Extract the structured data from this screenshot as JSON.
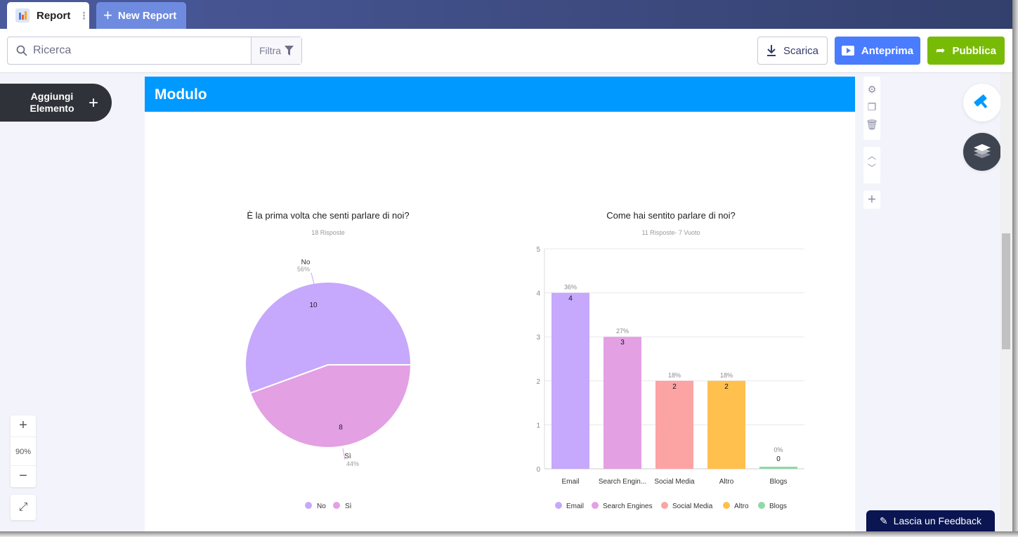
{
  "tabs": [
    {
      "label": "Report"
    },
    {
      "label": "New Report"
    }
  ],
  "toolbar": {
    "search_placeholder": "Ricerca",
    "filter": "Filtra",
    "download": "Scarica",
    "preview": "Anteprima",
    "publish": "Pubblica"
  },
  "sidebar": {
    "add_element": "Aggiungi Elemento",
    "zoom": "90%"
  },
  "page": {
    "title": "Modulo"
  },
  "feedback": "Lascia un Feedback",
  "colors": {
    "header": "#0099ff",
    "preview": "#4a7cff",
    "publish": "#78bb07"
  },
  "chart_data": [
    {
      "type": "pie",
      "title": "È la prima volta che senti parlare di noi?",
      "subtitle": "18 Risposte",
      "categories": [
        "No",
        "Sì"
      ],
      "values": [
        10,
        8
      ],
      "percent_labels": [
        "56%",
        "44%"
      ],
      "colors": [
        "#c6a8fc",
        "#e3a0e3"
      ],
      "legend": "bottom"
    },
    {
      "type": "bar",
      "title": "Come hai sentito parlare di noi?",
      "subtitle": "11 Risposte- 7 Vuoto",
      "categories": [
        "Email",
        "Search Engines",
        "Social Media",
        "Altro",
        "Blogs"
      ],
      "tick_labels": [
        "Email",
        "Search Engin...",
        "Social Media",
        "Altro",
        "Blogs"
      ],
      "values": [
        4,
        3,
        2,
        2,
        0
      ],
      "percent_labels": [
        "36%",
        "27%",
        "18%",
        "18%",
        "0%"
      ],
      "colors": [
        "#c6a8fc",
        "#e3a0e3",
        "#fca3a3",
        "#ffc04d",
        "#8fd9a8"
      ],
      "ylim": [
        0,
        5
      ],
      "yticks": [
        "0",
        "1",
        "2",
        "3",
        "4",
        "5"
      ],
      "grid": true,
      "legend": "bottom"
    }
  ]
}
